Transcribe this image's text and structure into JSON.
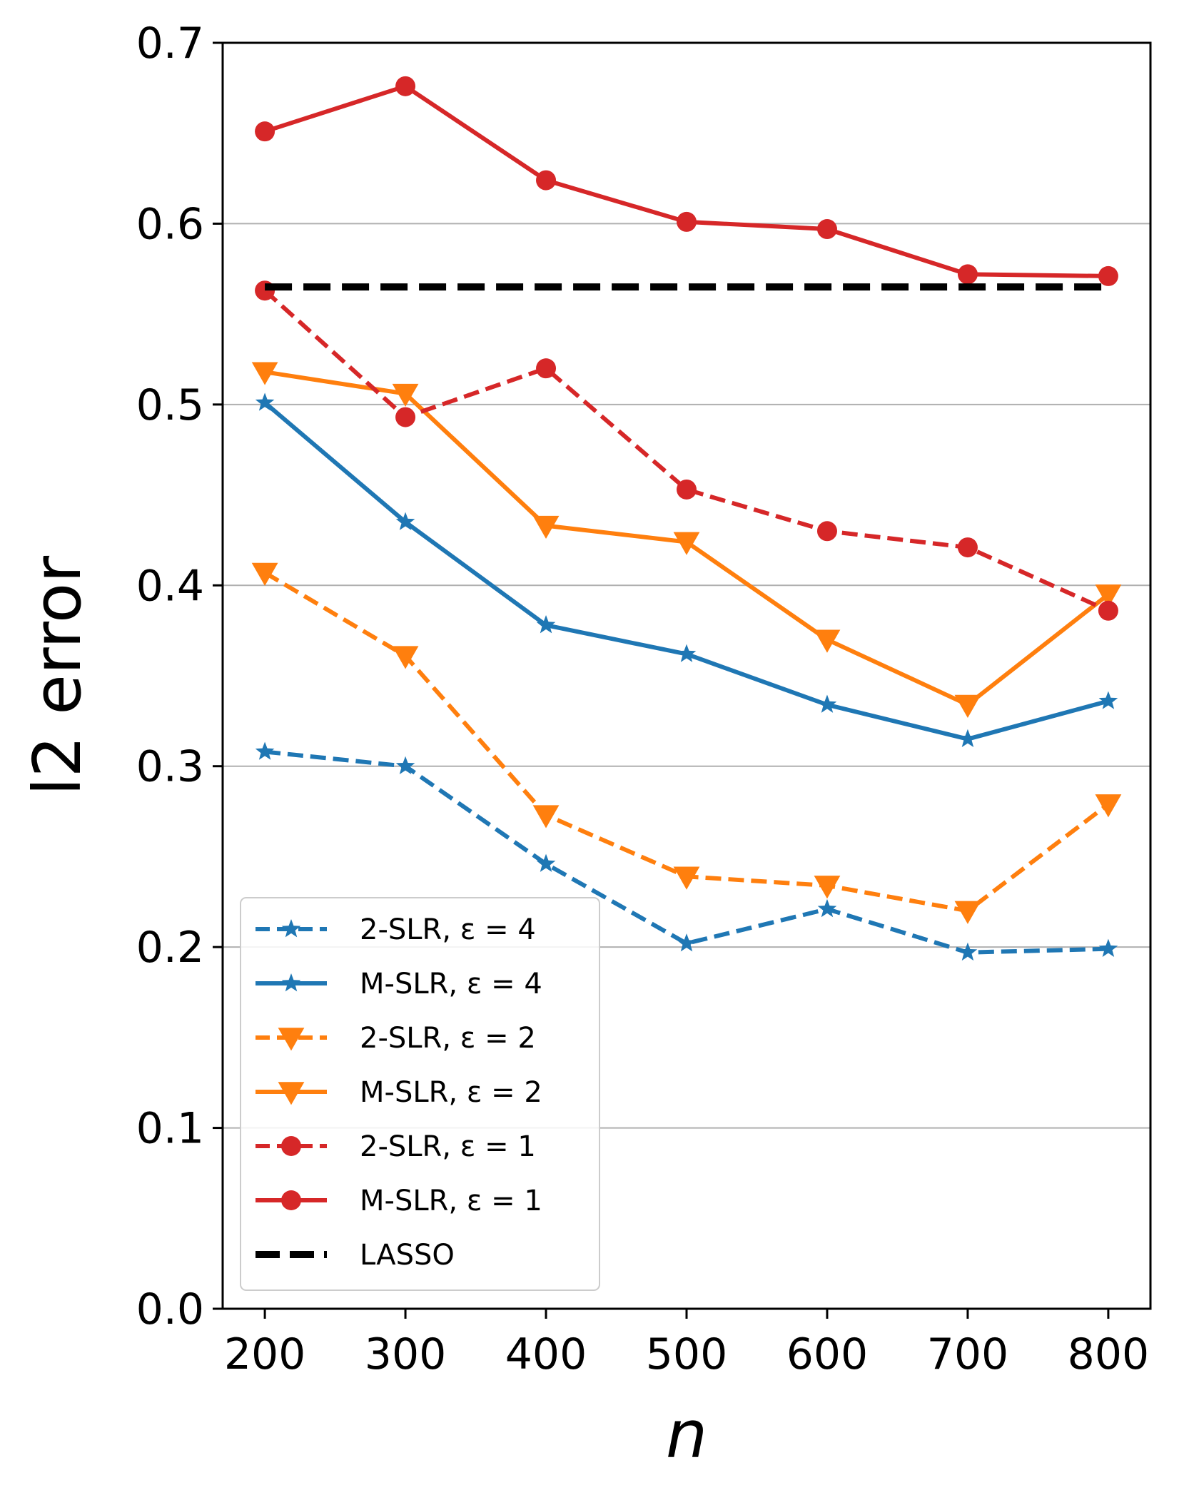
{
  "chart_data": {
    "type": "line",
    "xlabel": "n",
    "ylabel": "l2 error",
    "xlim": [
      170,
      830
    ],
    "ylim": [
      0.0,
      0.7
    ],
    "x": [
      200,
      300,
      400,
      500,
      600,
      700,
      800
    ],
    "xticks": [
      "200",
      "300",
      "400",
      "500",
      "600",
      "700",
      "800"
    ],
    "yticks": [
      "0.0",
      "0.1",
      "0.2",
      "0.3",
      "0.4",
      "0.5",
      "0.6",
      "0.7"
    ],
    "grid": "horizontal",
    "legend_position": "lower-left",
    "series": [
      {
        "name": "2-SLR, ε = 4",
        "color": "#1f77b4",
        "style": "dashed",
        "marker": "star",
        "values": [
          0.308,
          0.3,
          0.246,
          0.202,
          0.221,
          0.197,
          0.199
        ]
      },
      {
        "name": "M-SLR, ε = 4",
        "color": "#1f77b4",
        "style": "solid",
        "marker": "star",
        "values": [
          0.501,
          0.435,
          0.378,
          0.362,
          0.334,
          0.315,
          0.336
        ]
      },
      {
        "name": "2-SLR, ε = 2",
        "color": "#ff7f0e",
        "style": "dashed",
        "marker": "triangle-down",
        "values": [
          0.407,
          0.361,
          0.273,
          0.239,
          0.234,
          0.22,
          0.279
        ]
      },
      {
        "name": "M-SLR, ε = 2",
        "color": "#ff7f0e",
        "style": "solid",
        "marker": "triangle-down",
        "values": [
          0.518,
          0.506,
          0.433,
          0.424,
          0.37,
          0.334,
          0.395
        ]
      },
      {
        "name": "2-SLR, ε = 1",
        "color": "#d62728",
        "style": "dashed",
        "marker": "circle",
        "values": [
          0.563,
          0.493,
          0.52,
          0.453,
          0.43,
          0.421,
          0.386
        ]
      },
      {
        "name": "M-SLR, ε = 1",
        "color": "#d62728",
        "style": "solid",
        "marker": "circle",
        "values": [
          0.651,
          0.676,
          0.624,
          0.601,
          0.597,
          0.572,
          0.571
        ]
      },
      {
        "name": "LASSO",
        "color": "#000000",
        "style": "dashed-thick",
        "marker": "none",
        "values": [
          0.565,
          0.565,
          0.565,
          0.565,
          0.565,
          0.565,
          0.565
        ]
      }
    ]
  }
}
